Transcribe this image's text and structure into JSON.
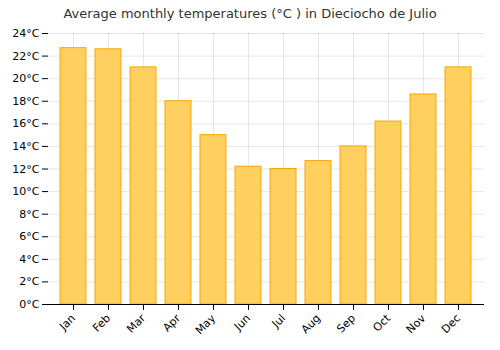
{
  "chart_data": {
    "type": "bar",
    "title": "Average monthly temperatures (°C ) in Dieciocho de Julio",
    "categories": [
      "Jan",
      "Feb",
      "Mar",
      "Apr",
      "May",
      "Jun",
      "Jul",
      "Aug",
      "Sep",
      "Oct",
      "Nov",
      "Dec"
    ],
    "values": [
      22.7,
      22.6,
      21.0,
      18.0,
      15.0,
      12.2,
      12.0,
      12.7,
      14.0,
      16.2,
      18.6,
      21.0
    ],
    "color": "#FFD060",
    "ylim": [
      0,
      24
    ],
    "yticks": [
      {
        "value": 0,
        "label": "0°C"
      },
      {
        "value": 2,
        "label": "2°C"
      },
      {
        "value": 4,
        "label": "4°C"
      },
      {
        "value": 6,
        "label": "6°C"
      },
      {
        "value": 8,
        "label": "8°C"
      },
      {
        "value": 10,
        "label": "10°C"
      },
      {
        "value": 12,
        "label": "12°C"
      },
      {
        "value": 14,
        "label": "14°C"
      },
      {
        "value": 16,
        "label": "16°C"
      },
      {
        "value": 18,
        "label": "18°C"
      },
      {
        "value": 20,
        "label": "20°C"
      },
      {
        "value": 22,
        "label": "22°C"
      },
      {
        "value": 24,
        "label": "24°C"
      }
    ],
    "grid": true
  }
}
